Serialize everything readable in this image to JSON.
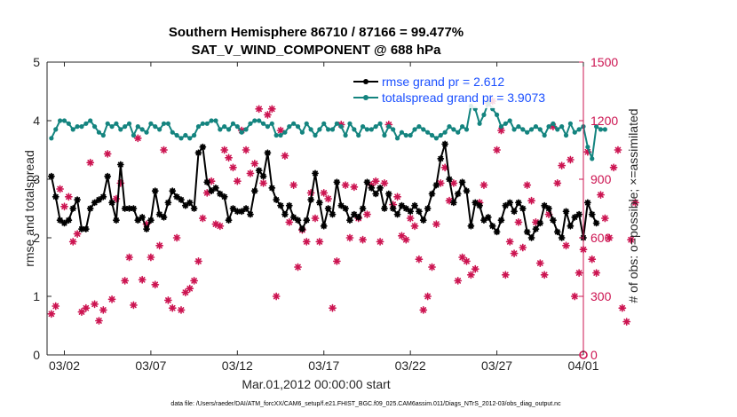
{
  "colors": {
    "rmse": "#000000",
    "spread": "#14847f",
    "obs": "#cc1451",
    "legend_text": "#1a4fff",
    "axis": "#262626",
    "legend_bg": "#ffffff"
  },
  "chart_data": {
    "type": "line",
    "title": "Southern Hemisphere 86710 / 87166 = 99.477%",
    "subtitle": "SAT_V_WIND_COMPONENT @ 688 hPa",
    "xlabel": "Mar.01,2012 00:00:00 start",
    "ylabel": "rmse and totalspread",
    "y2label": "# of obs: o=possible; ×=assimilated",
    "footnote": "data file: /Users/raeder/DAI/ATM_forcXX/CAM6_setup/f.e21.FHIST_BGC.f09_025.CAM6assim.011/Diags_NTrS_2012-03/obs_diag_output.nc",
    "xlim": [
      0.5,
      31.5
    ],
    "ylim": [
      0,
      5
    ],
    "y2lim": [
      0,
      1500
    ],
    "xticks": [
      1.5,
      6.5,
      11.5,
      16.5,
      21.5,
      26.5,
      31.5
    ],
    "xtick_labels": [
      "03/02",
      "03/07",
      "03/12",
      "03/17",
      "03/22",
      "03/27",
      "04/01"
    ],
    "yticks": [
      0,
      1,
      2,
      3,
      4,
      5
    ],
    "yticks_labels": [
      "0",
      "1",
      "2",
      "3",
      "4",
      "5"
    ],
    "y2ticks": [
      0,
      300,
      600,
      900,
      1200,
      1500
    ],
    "y2ticks_labels": [
      "0",
      "300",
      "600",
      "900",
      "1200",
      "1500"
    ],
    "legend": {
      "position": "top-right",
      "rmse_label": "rmse grand pr = 2.612",
      "spread_label": "totalspread grand pr = 3.9073"
    },
    "series": [
      {
        "name": "rmse",
        "x_start": 0.75,
        "x_step": 0.25,
        "values": [
          3.05,
          2.7,
          2.3,
          2.25,
          2.3,
          2.5,
          2.65,
          2.15,
          2.15,
          2.5,
          2.6,
          2.65,
          2.7,
          3.05,
          2.6,
          2.3,
          3.25,
          2.5,
          2.5,
          2.5,
          2.3,
          2.35,
          2.15,
          2.3,
          2.8,
          2.4,
          2.35,
          2.6,
          2.8,
          2.7,
          2.65,
          2.55,
          2.6,
          2.5,
          3.45,
          3.55,
          2.95,
          2.8,
          2.85,
          2.75,
          2.7,
          2.3,
          2.5,
          2.45,
          2.45,
          2.5,
          2.4,
          2.8,
          3.15,
          3.05,
          3.45,
          2.85,
          2.65,
          2.55,
          2.4,
          2.55,
          2.35,
          2.3,
          2.15,
          2.3,
          2.65,
          3.1,
          2.6,
          2.2,
          2.5,
          2.4,
          2.95,
          2.55,
          2.5,
          2.3,
          2.4,
          2.35,
          2.5,
          2.95,
          2.85,
          2.75,
          2.85,
          2.5,
          2.75,
          2.5,
          2.4,
          2.55,
          2.5,
          2.45,
          2.55,
          2.45,
          2.3,
          2.5,
          2.75,
          2.9,
          3.35,
          3.6,
          3.0,
          2.6,
          2.75,
          2.95,
          2.8,
          2.2,
          2.6,
          2.55,
          2.3,
          2.35,
          2.2,
          2.1,
          2.3,
          2.55,
          2.6,
          2.45,
          2.6,
          2.5,
          2.1,
          2.0,
          2.15,
          2.25,
          2.55,
          2.5,
          2.3,
          2.1,
          2.0,
          2.45,
          2.2,
          2.35,
          2.4,
          2.0,
          2.6,
          2.4,
          2.25
        ]
      },
      {
        "name": "totalspread",
        "x_start": 0.75,
        "x_step": 0.25,
        "values": [
          3.7,
          3.85,
          4.0,
          4.0,
          3.95,
          3.85,
          3.9,
          3.9,
          3.95,
          4.0,
          3.9,
          3.8,
          3.75,
          3.95,
          3.9,
          3.95,
          3.85,
          3.9,
          3.95,
          3.75,
          3.9,
          3.85,
          3.8,
          3.95,
          3.9,
          3.85,
          3.95,
          3.95,
          3.8,
          3.75,
          3.7,
          3.75,
          3.7,
          3.75,
          3.9,
          3.95,
          3.95,
          4.0,
          4.0,
          3.85,
          3.9,
          3.85,
          3.95,
          3.9,
          3.8,
          3.85,
          3.95,
          4.0,
          4.0,
          3.95,
          3.9,
          3.95,
          3.75,
          3.75,
          3.8,
          3.9,
          3.95,
          3.9,
          3.8,
          3.95,
          3.85,
          3.75,
          3.85,
          3.95,
          3.85,
          3.85,
          3.95,
          3.9,
          3.75,
          3.95,
          3.85,
          3.75,
          3.9,
          3.85,
          3.85,
          3.9,
          3.95,
          3.75,
          3.9,
          3.85,
          3.7,
          3.8,
          3.75,
          3.75,
          3.85,
          3.9,
          3.85,
          3.8,
          3.75,
          3.7,
          3.75,
          3.8,
          3.9,
          3.85,
          3.8,
          3.9,
          3.85,
          4.25,
          4.2,
          3.95,
          4.1,
          4.3,
          4.2,
          4.1,
          3.9,
          3.95,
          4.0,
          3.85,
          3.9,
          3.85,
          3.8,
          3.85,
          3.9,
          3.85,
          3.75,
          3.9,
          3.95,
          3.85,
          3.9,
          3.75,
          3.95,
          3.8,
          3.85,
          3.9,
          3.55,
          3.35,
          3.9,
          3.85,
          3.85
        ]
      },
      {
        "name": "obs_assimilated",
        "axis": "right",
        "x_start": 0.75,
        "x_step": 0.25,
        "values": [
          210,
          250,
          850,
          760,
          810,
          580,
          620,
          220,
          240,
          985,
          260,
          175,
          230,
          1030,
          285,
          800,
          880,
          380,
          500,
          255,
          1110,
          385,
          670,
          500,
          360,
          560,
          1050,
          280,
          240,
          600,
          230,
          320,
          340,
          380,
          480,
          700,
          830,
          890,
          670,
          660,
          1050,
          1010,
          960,
          890,
          1150,
          1050,
          930,
          980,
          1260,
          880,
          1230,
          1260,
          300,
          1150,
          1020,
          680,
          870,
          450,
          640,
          580,
          830,
          700,
          580,
          830,
          800,
          240,
          480,
          1180,
          870,
          600,
          860,
          700,
          590,
          720,
          870,
          890,
          580,
          880,
          1180,
          770,
          810,
          610,
          590,
          700,
          660,
          490,
          230,
          300,
          450,
          670,
          880,
          960,
          790,
          880,
          380,
          500,
          480,
          410,
          440,
          780,
          870,
          1290,
          1300,
          1050,
          1150,
          410,
          580,
          520,
          680,
          550,
          870,
          790,
          680,
          470,
          410,
          720,
          1170,
          880,
          970,
          560,
          1000,
          300,
          420,
          540,
          1040,
          490,
          420,
          820,
          700,
          600,
          960,
          1050,
          240,
          170,
          590,
          780
        ]
      },
      {
        "name": "obs_possible",
        "axis": "right",
        "x_start": 31.5,
        "x_step": 0,
        "values": [
          0
        ]
      }
    ]
  }
}
